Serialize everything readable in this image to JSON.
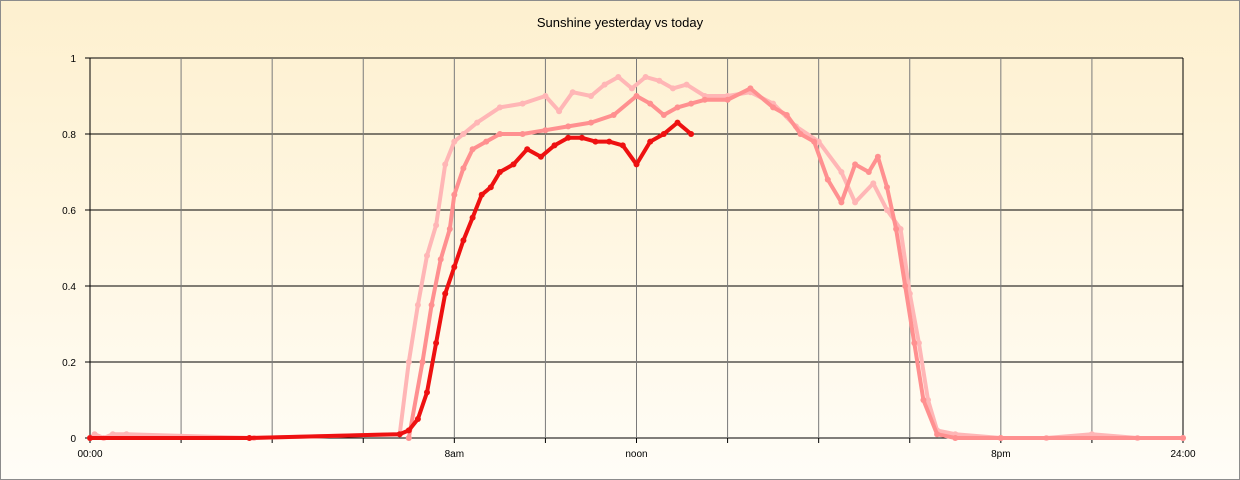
{
  "chart_data": {
    "type": "line",
    "title": "Sunshine yesterday vs today",
    "xlabel": "",
    "ylabel": "",
    "x_unit": "hours",
    "xlim": [
      0,
      24
    ],
    "ylim": [
      0,
      1
    ],
    "y_ticks": [
      {
        "value": 0,
        "label": "0"
      },
      {
        "value": 0.2,
        "label": "0.2"
      },
      {
        "value": 0.4,
        "label": "0.4"
      },
      {
        "value": 0.6,
        "label": "0.6"
      },
      {
        "value": 0.8,
        "label": "0.8"
      },
      {
        "value": 1,
        "label": "1"
      }
    ],
    "x_ticks": [
      {
        "value": 0,
        "label": "00:00"
      },
      {
        "value": 2,
        "label": ""
      },
      {
        "value": 4,
        "label": ""
      },
      {
        "value": 6,
        "label": ""
      },
      {
        "value": 8,
        "label": "8am"
      },
      {
        "value": 10,
        "label": ""
      },
      {
        "value": 12,
        "label": "noon"
      },
      {
        "value": 14,
        "label": ""
      },
      {
        "value": 16,
        "label": ""
      },
      {
        "value": 18,
        "label": ""
      },
      {
        "value": 20,
        "label": "8pm"
      },
      {
        "value": 22,
        "label": ""
      },
      {
        "value": 24,
        "label": "24:00"
      }
    ],
    "grid": true,
    "legend": "none",
    "series": [
      {
        "color": "#ffb6b6",
        "points": [
          [
            0,
            0
          ],
          [
            0.1,
            0.01
          ],
          [
            0.3,
            0
          ],
          [
            0.5,
            0.01
          ],
          [
            0.8,
            0.01
          ],
          [
            3.6,
            0
          ],
          [
            6.8,
            0.01
          ],
          [
            7,
            0.2
          ],
          [
            7.2,
            0.35
          ],
          [
            7.4,
            0.48
          ],
          [
            7.6,
            0.56
          ],
          [
            7.8,
            0.72
          ],
          [
            8,
            0.78
          ],
          [
            8.2,
            0.8
          ],
          [
            8.5,
            0.83
          ],
          [
            9,
            0.87
          ],
          [
            9.5,
            0.88
          ],
          [
            10,
            0.9
          ],
          [
            10.3,
            0.86
          ],
          [
            10.6,
            0.91
          ],
          [
            11,
            0.9
          ],
          [
            11.3,
            0.93
          ],
          [
            11.6,
            0.95
          ],
          [
            11.9,
            0.92
          ],
          [
            12.2,
            0.95
          ],
          [
            12.5,
            0.94
          ],
          [
            12.8,
            0.92
          ],
          [
            13.1,
            0.93
          ],
          [
            13.5,
            0.9
          ],
          [
            14,
            0.9
          ],
          [
            14.5,
            0.91
          ],
          [
            15,
            0.88
          ],
          [
            15.5,
            0.82
          ],
          [
            16,
            0.78
          ],
          [
            16.5,
            0.7
          ],
          [
            16.8,
            0.62
          ],
          [
            17.2,
            0.67
          ],
          [
            17.5,
            0.6
          ],
          [
            17.8,
            0.55
          ],
          [
            18,
            0.38
          ],
          [
            18.2,
            0.25
          ],
          [
            18.4,
            0.1
          ],
          [
            18.6,
            0.02
          ],
          [
            19,
            0.01
          ],
          [
            20,
            0
          ],
          [
            21,
            0
          ],
          [
            22,
            0.01
          ],
          [
            23,
            0
          ],
          [
            24,
            0
          ]
        ]
      },
      {
        "color": "#ff9090",
        "points": [
          [
            7.0,
            0
          ],
          [
            7.3,
            0.2
          ],
          [
            7.5,
            0.35
          ],
          [
            7.7,
            0.47
          ],
          [
            7.9,
            0.55
          ],
          [
            8.0,
            0.64
          ],
          [
            8.2,
            0.71
          ],
          [
            8.4,
            0.76
          ],
          [
            8.7,
            0.78
          ],
          [
            9,
            0.8
          ],
          [
            9.5,
            0.8
          ],
          [
            10,
            0.81
          ],
          [
            10.5,
            0.82
          ],
          [
            11,
            0.83
          ],
          [
            11.5,
            0.85
          ],
          [
            12,
            0.9
          ],
          [
            12.3,
            0.88
          ],
          [
            12.6,
            0.85
          ],
          [
            12.9,
            0.87
          ],
          [
            13.2,
            0.88
          ],
          [
            13.5,
            0.89
          ],
          [
            14,
            0.89
          ],
          [
            14.5,
            0.92
          ],
          [
            15,
            0.87
          ],
          [
            15.3,
            0.85
          ],
          [
            15.6,
            0.8
          ],
          [
            15.9,
            0.78
          ],
          [
            16.2,
            0.68
          ],
          [
            16.5,
            0.62
          ],
          [
            16.8,
            0.72
          ],
          [
            17.1,
            0.7
          ],
          [
            17.3,
            0.74
          ],
          [
            17.5,
            0.66
          ],
          [
            17.7,
            0.55
          ],
          [
            17.9,
            0.4
          ],
          [
            18.1,
            0.25
          ],
          [
            18.3,
            0.1
          ],
          [
            18.6,
            0.01
          ],
          [
            19,
            0
          ],
          [
            20,
            0
          ],
          [
            24,
            0
          ]
        ]
      },
      {
        "color": "#ee1111",
        "points": [
          [
            0,
            0
          ],
          [
            3.5,
            0
          ],
          [
            6.8,
            0.01
          ],
          [
            7.0,
            0.02
          ],
          [
            7.2,
            0.05
          ],
          [
            7.4,
            0.12
          ],
          [
            7.6,
            0.25
          ],
          [
            7.8,
            0.38
          ],
          [
            8.0,
            0.45
          ],
          [
            8.2,
            0.52
          ],
          [
            8.4,
            0.58
          ],
          [
            8.6,
            0.64
          ],
          [
            8.8,
            0.66
          ],
          [
            9.0,
            0.7
          ],
          [
            9.3,
            0.72
          ],
          [
            9.6,
            0.76
          ],
          [
            9.9,
            0.74
          ],
          [
            10.2,
            0.77
          ],
          [
            10.5,
            0.79
          ],
          [
            10.8,
            0.79
          ],
          [
            11.1,
            0.78
          ],
          [
            11.4,
            0.78
          ],
          [
            11.7,
            0.77
          ],
          [
            12.0,
            0.72
          ],
          [
            12.3,
            0.78
          ],
          [
            12.6,
            0.8
          ],
          [
            12.9,
            0.83
          ],
          [
            13.2,
            0.8
          ]
        ]
      }
    ]
  }
}
